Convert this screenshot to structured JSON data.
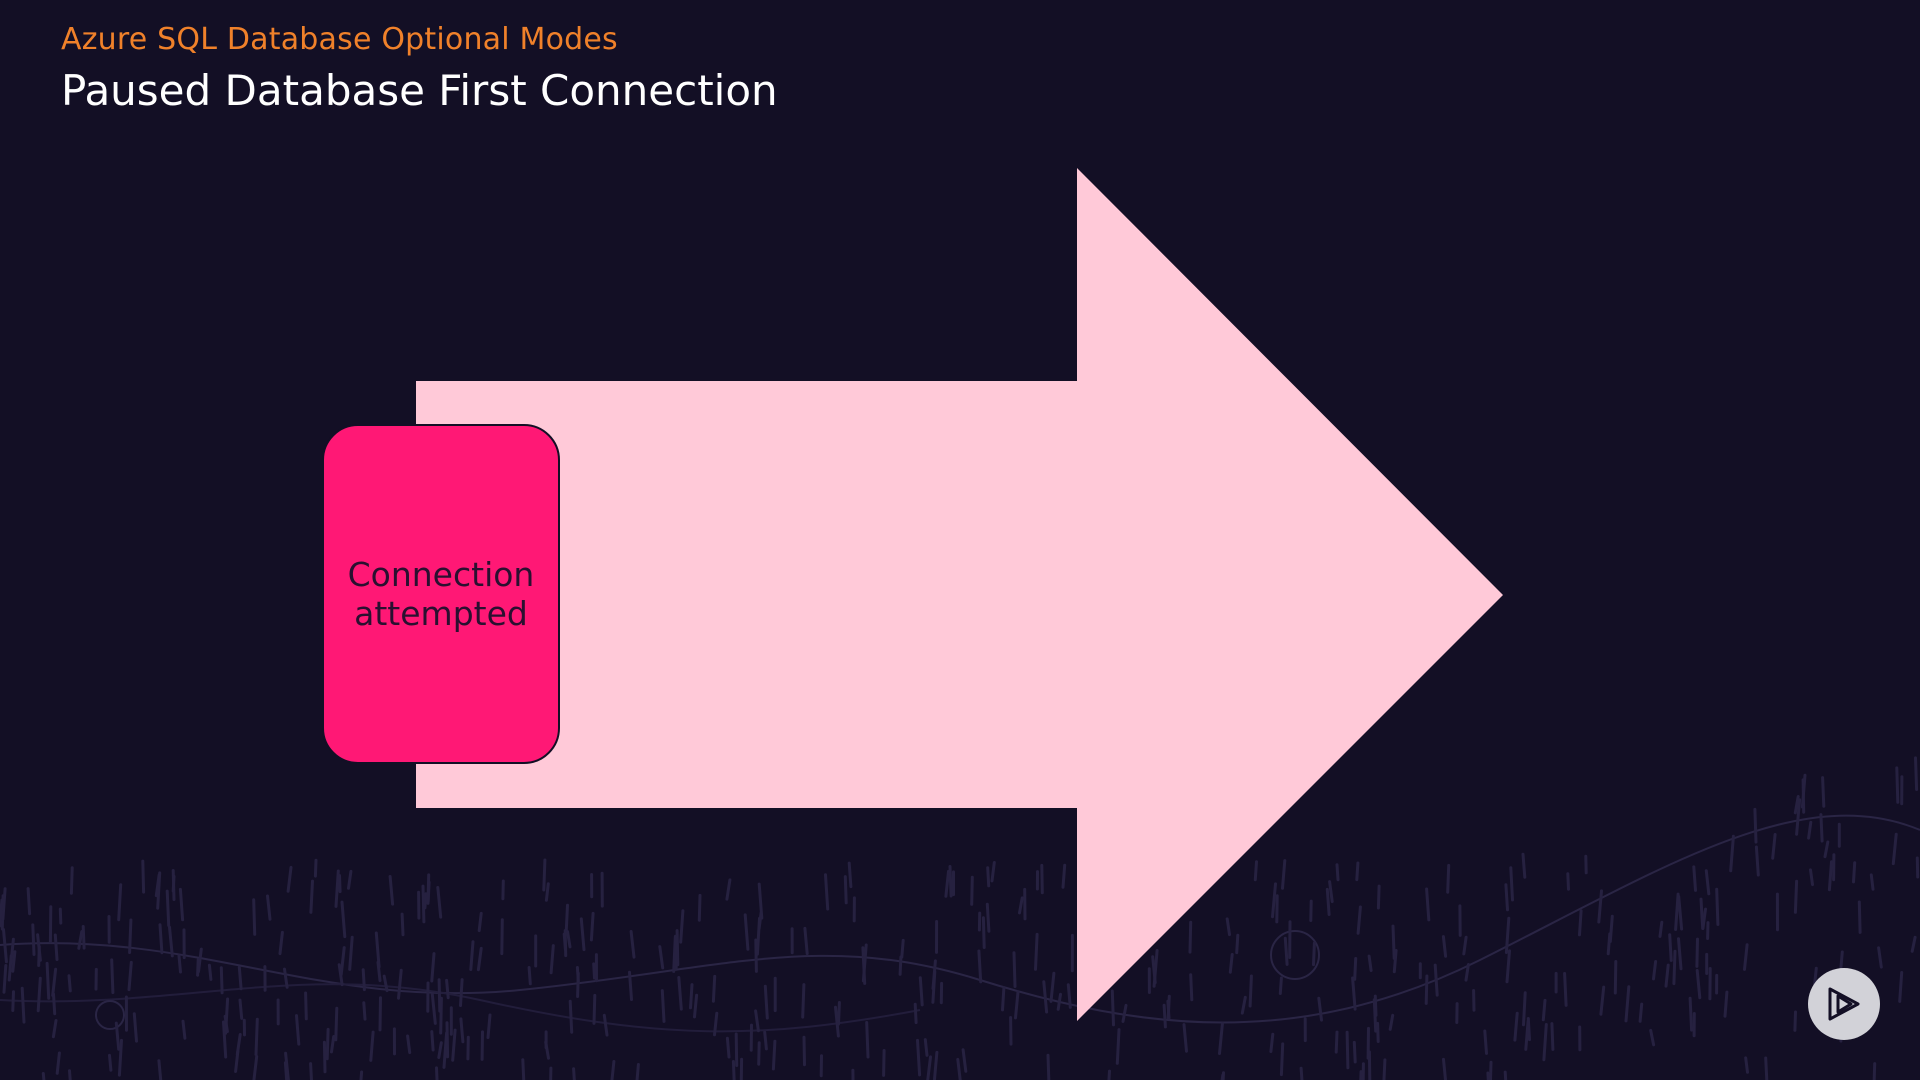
{
  "header": {
    "subtitle": "Azure SQL Database Optional Modes",
    "title": "Paused Database First Connection"
  },
  "diagram": {
    "steps": [
      {
        "label": "Connection\nattempted"
      }
    ],
    "colors": {
      "background": "#130f25",
      "subtitle": "#f0812a",
      "title": "#ffffff",
      "arrow_fill": "#ffc9d8",
      "step_fill": "#ff1875",
      "step_text": "#2a1030",
      "play_button": "#d2d2d8"
    }
  },
  "icons": {
    "brand_button": "play-logo-icon"
  }
}
